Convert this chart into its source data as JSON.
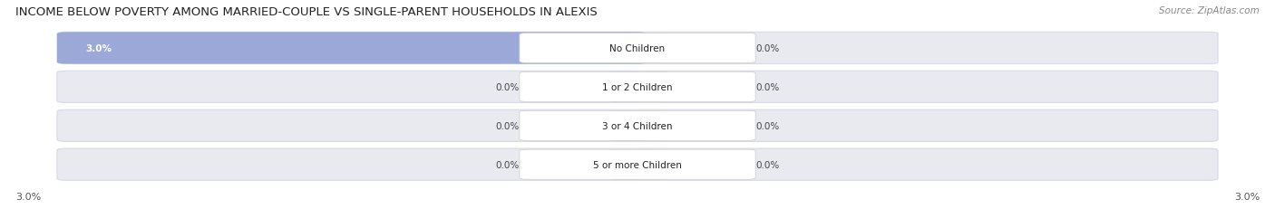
{
  "title": "INCOME BELOW POVERTY AMONG MARRIED-COUPLE VS SINGLE-PARENT HOUSEHOLDS IN ALEXIS",
  "source": "Source: ZipAtlas.com",
  "categories": [
    "No Children",
    "1 or 2 Children",
    "3 or 4 Children",
    "5 or more Children"
  ],
  "married_values": [
    3.0,
    0.0,
    0.0,
    0.0
  ],
  "single_values": [
    0.0,
    0.0,
    0.0,
    0.0
  ],
  "married_color": "#9ba8d8",
  "single_color": "#f2c48a",
  "background_color": "#ffffff",
  "bar_bg_color": "#e9e9f0",
  "bar_bg_edge_color": "#d8d8e8",
  "max_val": 3.0,
  "title_fontsize": 9.5,
  "source_fontsize": 7.5,
  "value_fontsize": 7.5,
  "cat_fontsize": 7.5,
  "legend_fontsize": 8,
  "axis_label_fontsize": 8
}
